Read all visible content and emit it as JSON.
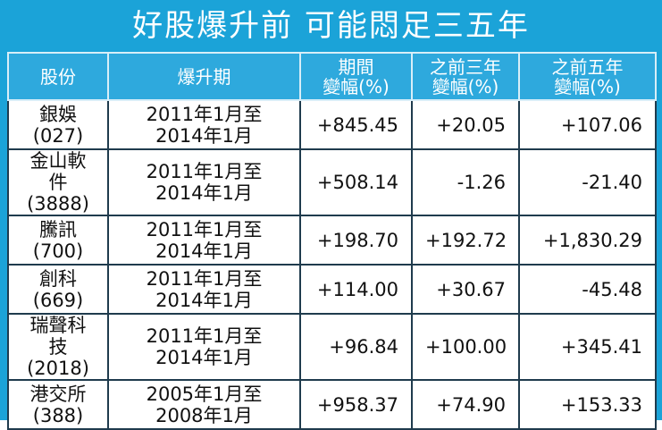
{
  "title": "好股爆升前 可能悶足三五年",
  "table": {
    "header": [
      [
        "股份"
      ],
      [
        "爆升期"
      ],
      [
        "期間",
        "變幅(%)"
      ],
      [
        "之前三年",
        "變幅(%)"
      ],
      [
        "之前五年",
        "變幅(%)"
      ]
    ],
    "rows": [
      [
        [
          "銀娛",
          "(027)"
        ],
        [
          "2011年1月至",
          "2014年1月"
        ],
        [
          "+845.45"
        ],
        [
          "+20.05"
        ],
        [
          "+107.06"
        ]
      ],
      [
        [
          "金山軟件",
          "(3888)"
        ],
        [
          "2011年1月至",
          "2014年1月"
        ],
        [
          "+508.14"
        ],
        [
          "-1.26"
        ],
        [
          "-21.40"
        ]
      ],
      [
        [
          "騰訊",
          "(700)"
        ],
        [
          "2011年1月至",
          "2014年1月"
        ],
        [
          "+198.70"
        ],
        [
          "+192.72"
        ],
        [
          "+1,830.29"
        ]
      ],
      [
        [
          "創科",
          "(669)"
        ],
        [
          "2011年1月至",
          "2014年1月"
        ],
        [
          "+114.00"
        ],
        [
          "+30.67"
        ],
        [
          "-45.48"
        ]
      ],
      [
        [
          "瑞聲科技",
          "(2018)"
        ],
        [
          "2011年1月至",
          "2014年1月"
        ],
        [
          "+96.84"
        ],
        [
          "+100.00"
        ],
        [
          "+345.41"
        ]
      ],
      [
        [
          "港交所",
          "(388)"
        ],
        [
          "2005年1月至",
          "2008年1月"
        ],
        [
          "+958.37"
        ],
        [
          "+74.90"
        ],
        [
          "+153.33"
        ]
      ]
    ]
  }
}
